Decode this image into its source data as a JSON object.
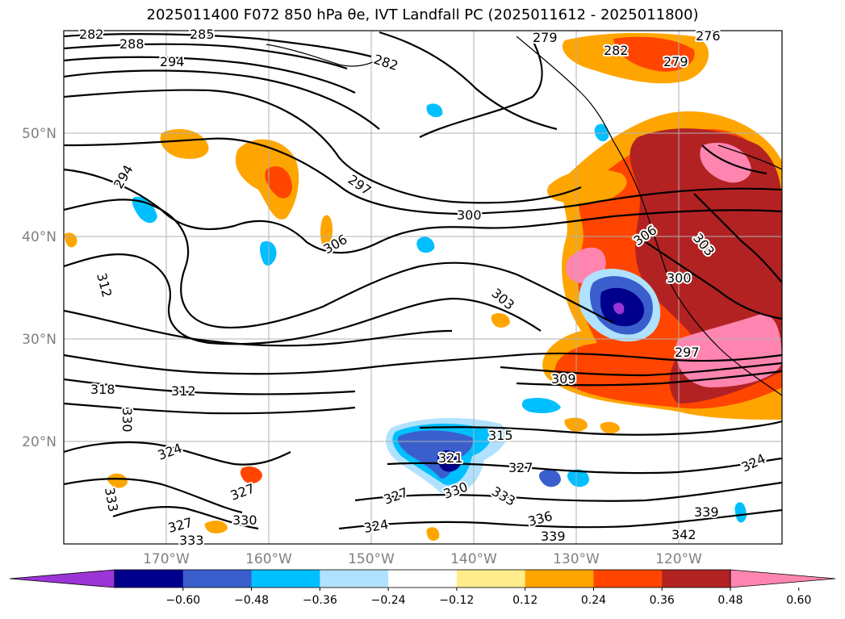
{
  "title": "2025011400 F072 850 hPa θe, IVT Landfall PC (2025011612 - 2025011800)",
  "axes": {
    "lat_labels": [
      "50°N",
      "40°N",
      "30°N",
      "20°N"
    ],
    "lon_labels": [
      "170°W",
      "160°W",
      "150°W",
      "140°W",
      "130°W",
      "120°W"
    ]
  },
  "contour_labels": [
    "282",
    "288",
    "285",
    "294",
    "279",
    "276",
    "282",
    "279",
    "282",
    "294",
    "297",
    "300",
    "306",
    "312",
    "303",
    "303",
    "306",
    "300",
    "297",
    "309",
    "318",
    "312",
    "330",
    "315",
    "321",
    "324",
    "327",
    "327",
    "330",
    "333",
    "327",
    "333",
    "327",
    "330",
    "324",
    "336",
    "339",
    "324",
    "339",
    "342",
    "333"
  ],
  "colorbar": {
    "ticks": [
      "−0.60",
      "−0.48",
      "−0.36",
      "−0.24",
      "−0.12",
      "0.12",
      "0.24",
      "0.36",
      "0.48",
      "0.60"
    ],
    "colors": [
      "#9b35d6",
      "#00008c",
      "#3a5fcd",
      "#00bfff",
      "#b0e2ff",
      "#ffffff",
      "#ffec8b",
      "#ffa500",
      "#ff4500",
      "#b22222",
      "#ff85b0"
    ]
  }
}
